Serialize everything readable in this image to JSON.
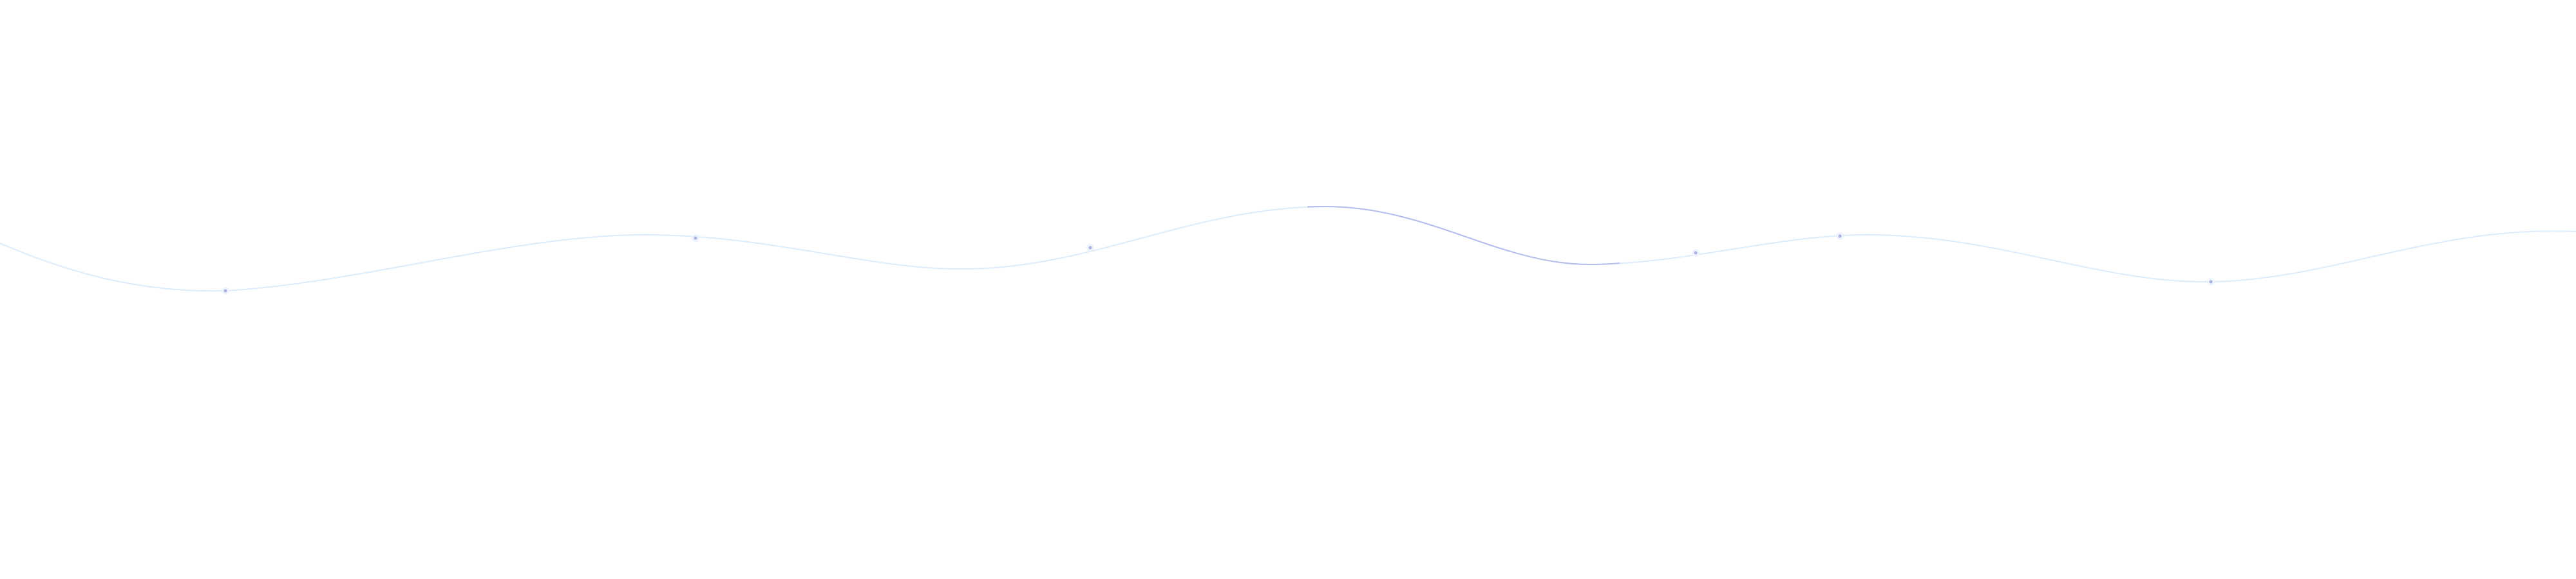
{
  "colors": {
    "background": "#ffffff",
    "wave": "#dcecfb",
    "wave_highlight": "#b4bcea",
    "dot": "#a9b0de"
  },
  "icons": [
    "wave-line",
    "dot-marker"
  ]
}
